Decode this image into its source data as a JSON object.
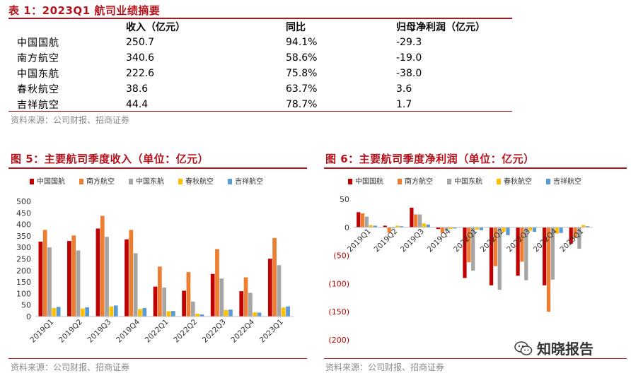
{
  "table": {
    "title": "表 1：2023Q1 航司业绩摘要",
    "headers": [
      "",
      "收入（亿元）",
      "同比",
      "归母净利润（亿元）"
    ],
    "rows": [
      [
        "中国国航",
        "250.7",
        "94.1%",
        "-29.3"
      ],
      [
        "南方航空",
        "340.6",
        "58.6%",
        "-19.0"
      ],
      [
        "中国东航",
        "222.6",
        "75.8%",
        "-38.0"
      ],
      [
        "春秋航空",
        "38.6",
        "63.7%",
        "3.6"
      ],
      [
        "吉祥航空",
        "44.4",
        "78.7%",
        "1.7"
      ]
    ],
    "source": "资料来源：公司财报、招商证券"
  },
  "fig5": {
    "title": "图 5：主要航司季度收入（单位：亿元）",
    "source": "资料来源：公司财报、招商证券"
  },
  "fig6": {
    "title": "图 6：主要航司季度净利润（单位：亿元）",
    "source": "资料来源：公司财报、招商证券"
  },
  "watermark": "知晓报告",
  "colors": {
    "accent": "#b5121b",
    "series": [
      "#c00000",
      "#ed7d31",
      "#a5a5a5",
      "#ffc000",
      "#5b9bd5"
    ]
  },
  "chart_data": [
    {
      "type": "bar",
      "categories": [
        "2019Q1",
        "2019Q2",
        "2019Q3",
        "2019Q4",
        "2022Q1",
        "2022Q2",
        "2022Q3",
        "2022Q4",
        "2023Q1"
      ],
      "series": [
        {
          "name": "中国国航",
          "values": [
            325,
            328,
            382,
            335,
            130,
            112,
            185,
            110,
            251
          ]
        },
        {
          "name": "南方航空",
          "values": [
            376,
            352,
            437,
            376,
            217,
            193,
            293,
            170,
            341
          ]
        },
        {
          "name": "中国东航",
          "values": [
            300,
            287,
            346,
            275,
            126,
            65,
            165,
            103,
            223
          ]
        },
        {
          "name": "春秋航空",
          "values": [
            37,
            35,
            44,
            33,
            23,
            12,
            28,
            18,
            39
          ]
        },
        {
          "name": "吉祥航空",
          "values": [
            42,
            40,
            48,
            37,
            24,
            9,
            30,
            17,
            44
          ]
        }
      ],
      "yticks": [
        0,
        50,
        100,
        150,
        200,
        250,
        300,
        350,
        400,
        450,
        500
      ],
      "ylim": [
        0,
        500
      ],
      "legend": "top"
    },
    {
      "type": "bar",
      "categories": [
        "2019Q1",
        "2019Q2",
        "2019Q3",
        "2019Q4",
        "2022Q1",
        "2022Q2",
        "2022Q3",
        "2022Q4",
        "2023Q1"
      ],
      "series": [
        {
          "name": "中国国航",
          "values": [
            27,
            3,
            35,
            -3,
            -90,
            -103,
            -86,
            -103,
            -29
          ]
        },
        {
          "name": "南方航空",
          "values": [
            25,
            -9,
            23,
            -10,
            -62,
            -69,
            -61,
            -150,
            -19
          ]
        },
        {
          "name": "中国东航",
          "values": [
            19,
            -2,
            23,
            -6,
            -77,
            -111,
            -94,
            -93,
            -38
          ]
        },
        {
          "name": "春秋航空",
          "values": [
            4,
            3,
            7,
            -3,
            -4,
            -8,
            -6,
            -11,
            4
          ]
        },
        {
          "name": "吉祥航空",
          "values": [
            3,
            2,
            5,
            -2,
            -5,
            -14,
            -8,
            -10,
            2
          ]
        }
      ],
      "yticks": [
        50,
        0,
        -50,
        -100,
        -150,
        -200
      ],
      "ytick_labels": [
        "50",
        "0",
        "(50)",
        "(100)",
        "(150)",
        "(200)"
      ],
      "ylim": [
        -200,
        50
      ],
      "legend": "top"
    }
  ]
}
